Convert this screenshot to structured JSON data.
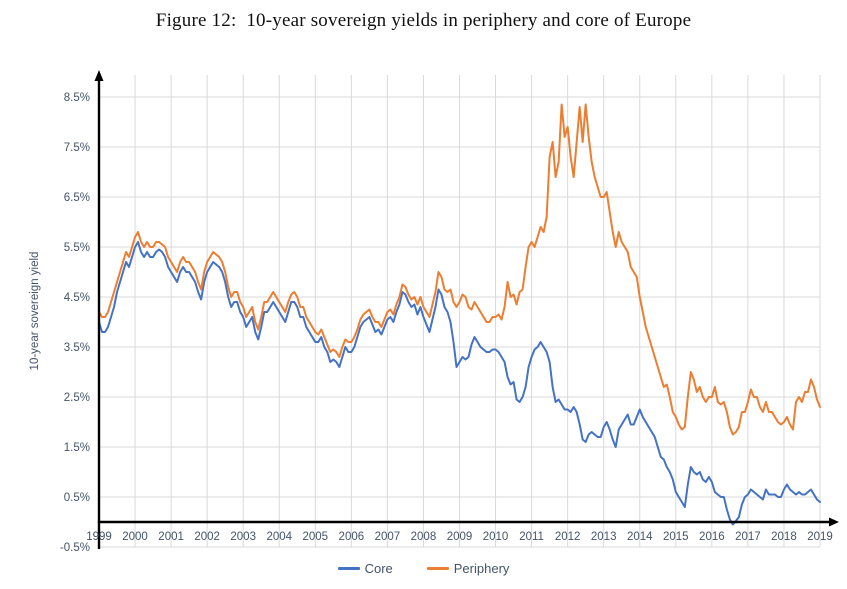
{
  "figure": {
    "title": "Figure 12:  10-year sovereign yields in periphery and core of Europe"
  },
  "chart_data": {
    "type": "line",
    "title": "Figure 12: 10-year sovereign yields in periphery and core of Europe",
    "xlabel": "",
    "ylabel": "10-year sovereign yield",
    "grid": true,
    "legend_position": "bottom",
    "x_axis": {
      "start": 1999,
      "end": 2019,
      "tick_labels": [
        "1999",
        "2000",
        "2001",
        "2002",
        "2003",
        "2004",
        "2005",
        "2006",
        "2007",
        "2008",
        "2009",
        "2010",
        "2011",
        "2012",
        "2013",
        "2014",
        "2015",
        "2016",
        "2017",
        "2018",
        "2019"
      ]
    },
    "y_axis": {
      "min": -0.5,
      "max": 8.5,
      "unit": "%",
      "tick_labels": [
        "8.5%",
        "7.5%",
        "6.5%",
        "5.5%",
        "4.5%",
        "3.5%",
        "2.5%",
        "1.5%",
        "0.5%",
        "-0.5%"
      ]
    },
    "sampling": "monthly",
    "x_start": 1999.0,
    "x_step": 0.0833333,
    "series": [
      {
        "name": "Core",
        "color": "#4472C4",
        "values": [
          4.0,
          3.8,
          3.8,
          3.9,
          4.1,
          4.3,
          4.6,
          4.8,
          5.0,
          5.2,
          5.1,
          5.3,
          5.5,
          5.6,
          5.4,
          5.3,
          5.4,
          5.3,
          5.3,
          5.4,
          5.45,
          5.4,
          5.3,
          5.1,
          5.0,
          4.9,
          4.8,
          5.0,
          5.1,
          5.0,
          5.0,
          4.9,
          4.8,
          4.6,
          4.45,
          4.8,
          5.0,
          5.1,
          5.2,
          5.15,
          5.1,
          5.0,
          4.8,
          4.5,
          4.3,
          4.4,
          4.4,
          4.2,
          4.1,
          3.9,
          4.0,
          4.1,
          3.8,
          3.65,
          3.9,
          4.2,
          4.2,
          4.3,
          4.4,
          4.3,
          4.2,
          4.1,
          4.0,
          4.2,
          4.4,
          4.4,
          4.3,
          4.1,
          4.1,
          3.9,
          3.8,
          3.7,
          3.6,
          3.6,
          3.7,
          3.5,
          3.4,
          3.2,
          3.25,
          3.2,
          3.1,
          3.3,
          3.5,
          3.4,
          3.4,
          3.5,
          3.7,
          3.9,
          4.0,
          4.05,
          4.1,
          3.95,
          3.8,
          3.85,
          3.75,
          3.9,
          4.05,
          4.1,
          4.0,
          4.2,
          4.35,
          4.6,
          4.55,
          4.4,
          4.3,
          4.35,
          4.15,
          4.3,
          4.1,
          3.95,
          3.8,
          4.05,
          4.3,
          4.65,
          4.55,
          4.3,
          4.2,
          4.0,
          3.6,
          3.1,
          3.2,
          3.3,
          3.25,
          3.3,
          3.55,
          3.7,
          3.6,
          3.5,
          3.45,
          3.4,
          3.4,
          3.45,
          3.45,
          3.4,
          3.3,
          3.2,
          2.9,
          2.75,
          2.8,
          2.45,
          2.4,
          2.5,
          2.7,
          3.1,
          3.3,
          3.45,
          3.5,
          3.6,
          3.5,
          3.4,
          3.2,
          2.7,
          2.4,
          2.45,
          2.35,
          2.25,
          2.25,
          2.2,
          2.3,
          2.2,
          1.95,
          1.65,
          1.6,
          1.75,
          1.8,
          1.75,
          1.7,
          1.7,
          1.9,
          2.0,
          1.85,
          1.65,
          1.5,
          1.85,
          1.95,
          2.05,
          2.15,
          1.95,
          1.95,
          2.1,
          2.25,
          2.1,
          2.0,
          1.9,
          1.8,
          1.7,
          1.5,
          1.3,
          1.25,
          1.1,
          1.0,
          0.85,
          0.6,
          0.5,
          0.4,
          0.3,
          0.75,
          1.1,
          1.0,
          0.95,
          1.0,
          0.85,
          0.8,
          0.9,
          0.8,
          0.6,
          0.55,
          0.5,
          0.5,
          0.25,
          0.05,
          -0.05,
          0.02,
          0.1,
          0.35,
          0.5,
          0.55,
          0.65,
          0.6,
          0.55,
          0.5,
          0.45,
          0.65,
          0.55,
          0.55,
          0.55,
          0.5,
          0.5,
          0.65,
          0.75,
          0.65,
          0.6,
          0.55,
          0.6,
          0.55,
          0.55,
          0.6,
          0.65,
          0.55,
          0.45,
          0.4
        ]
      },
      {
        "name": "Periphery",
        "color": "#ED7D31",
        "values": [
          4.2,
          4.1,
          4.1,
          4.2,
          4.4,
          4.6,
          4.8,
          5.0,
          5.2,
          5.4,
          5.3,
          5.5,
          5.7,
          5.8,
          5.6,
          5.5,
          5.6,
          5.5,
          5.5,
          5.6,
          5.6,
          5.55,
          5.5,
          5.3,
          5.2,
          5.1,
          5.0,
          5.2,
          5.3,
          5.2,
          5.2,
          5.1,
          5.0,
          4.8,
          4.65,
          5.0,
          5.2,
          5.3,
          5.4,
          5.35,
          5.3,
          5.2,
          5.0,
          4.7,
          4.5,
          4.6,
          4.6,
          4.4,
          4.3,
          4.1,
          4.2,
          4.3,
          4.0,
          3.85,
          4.1,
          4.4,
          4.4,
          4.5,
          4.6,
          4.5,
          4.4,
          4.3,
          4.2,
          4.4,
          4.55,
          4.6,
          4.5,
          4.3,
          4.3,
          4.1,
          4.0,
          3.9,
          3.8,
          3.75,
          3.85,
          3.7,
          3.55,
          3.4,
          3.45,
          3.4,
          3.3,
          3.5,
          3.65,
          3.6,
          3.6,
          3.7,
          3.85,
          4.05,
          4.15,
          4.2,
          4.25,
          4.1,
          4.0,
          4.0,
          3.9,
          4.05,
          4.2,
          4.25,
          4.15,
          4.35,
          4.5,
          4.75,
          4.7,
          4.55,
          4.45,
          4.5,
          4.35,
          4.5,
          4.3,
          4.2,
          4.1,
          4.35,
          4.6,
          5.0,
          4.9,
          4.65,
          4.6,
          4.65,
          4.4,
          4.3,
          4.4,
          4.55,
          4.5,
          4.3,
          4.25,
          4.4,
          4.3,
          4.2,
          4.1,
          4.0,
          4.0,
          4.1,
          4.1,
          4.15,
          4.05,
          4.3,
          4.8,
          4.5,
          4.55,
          4.35,
          4.6,
          4.65,
          5.1,
          5.5,
          5.6,
          5.5,
          5.7,
          5.9,
          5.8,
          6.1,
          7.3,
          7.6,
          6.9,
          7.2,
          8.35,
          7.7,
          7.9,
          7.3,
          6.9,
          7.6,
          8.3,
          7.6,
          8.35,
          7.7,
          7.2,
          6.9,
          6.7,
          6.5,
          6.5,
          6.6,
          6.2,
          5.8,
          5.5,
          5.8,
          5.6,
          5.5,
          5.4,
          5.1,
          5.0,
          4.9,
          4.5,
          4.2,
          3.9,
          3.7,
          3.5,
          3.3,
          3.1,
          2.9,
          2.7,
          2.75,
          2.5,
          2.2,
          2.1,
          1.95,
          1.85,
          1.9,
          2.5,
          3.0,
          2.85,
          2.6,
          2.7,
          2.5,
          2.4,
          2.5,
          2.5,
          2.7,
          2.4,
          2.35,
          2.4,
          2.2,
          1.9,
          1.75,
          1.8,
          1.9,
          2.2,
          2.2,
          2.4,
          2.65,
          2.5,
          2.5,
          2.3,
          2.2,
          2.4,
          2.2,
          2.2,
          2.1,
          2.0,
          1.95,
          2.0,
          2.1,
          1.95,
          1.85,
          2.4,
          2.5,
          2.4,
          2.6,
          2.6,
          2.85,
          2.7,
          2.45,
          2.3
        ]
      }
    ]
  },
  "style": {
    "grid_color": "#D9D9D9",
    "axis_color": "#000000",
    "label_color": "#44546A",
    "background": "#FFFFFF"
  }
}
